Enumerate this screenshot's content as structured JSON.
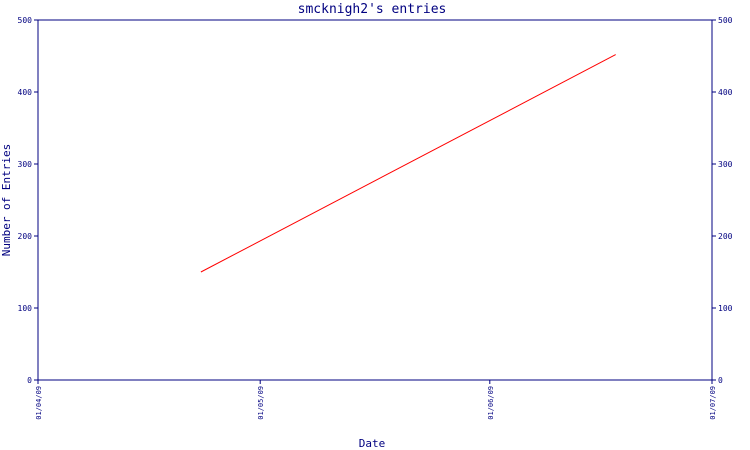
{
  "chart_data": {
    "type": "line",
    "title": "smcknigh2's entries",
    "xlabel": "Date",
    "ylabel": "Number of Entries",
    "x_ticks": [
      "01/04/09",
      "01/05/09",
      "01/06/09",
      "01/07/09"
    ],
    "y_ticks": [
      0,
      100,
      200,
      300,
      400,
      500
    ],
    "ylim": [
      0,
      500
    ],
    "grid": false,
    "legend": "none",
    "series": [
      {
        "x": [
          "2009-04-23",
          "2009-06-18"
        ],
        "values": [
          150,
          452
        ]
      }
    ],
    "colors": {
      "axis": "#000080",
      "line": "#ff0000"
    }
  }
}
